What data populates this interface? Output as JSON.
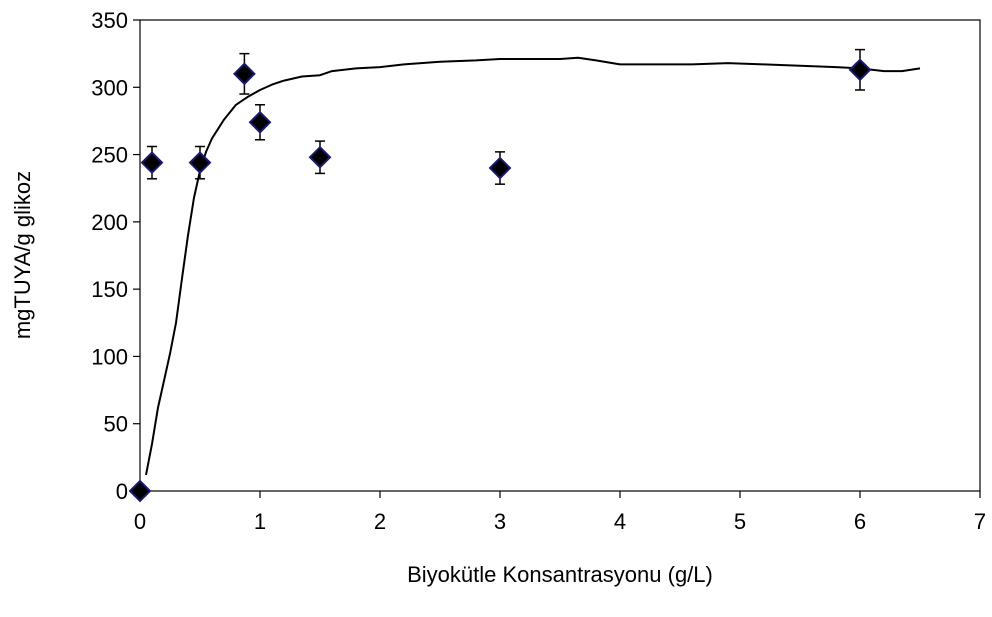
{
  "chart_data": {
    "type": "scatter",
    "title": "",
    "xlabel": "Biyokütle Konsantrasyonu (g/L)",
    "ylabel": "mgTUYA/g glikoz",
    "xlim": [
      0,
      7
    ],
    "ylim": [
      0,
      350
    ],
    "xticks": [
      0,
      1,
      2,
      3,
      4,
      5,
      6,
      7
    ],
    "yticks": [
      0,
      50,
      100,
      150,
      200,
      250,
      300,
      350
    ],
    "grid": false,
    "legend": "none",
    "marker_color": "#000000",
    "marker_edge_color": "#1a1a6e",
    "line_color": "#000000",
    "series": [
      {
        "kind": "scatter-errorbars",
        "points": [
          {
            "x": 0.0,
            "y": 0,
            "err": 0
          },
          {
            "x": 0.1,
            "y": 244,
            "err": 12
          },
          {
            "x": 0.5,
            "y": 244,
            "err": 12
          },
          {
            "x": 0.87,
            "y": 310,
            "err": 15
          },
          {
            "x": 1.0,
            "y": 274,
            "err": 13
          },
          {
            "x": 1.5,
            "y": 248,
            "err": 12
          },
          {
            "x": 3.0,
            "y": 240,
            "err": 12
          },
          {
            "x": 6.0,
            "y": 313,
            "err": 15
          }
        ]
      },
      {
        "kind": "curve",
        "points": [
          [
            0.05,
            12
          ],
          [
            0.1,
            35
          ],
          [
            0.15,
            62
          ],
          [
            0.2,
            82
          ],
          [
            0.25,
            102
          ],
          [
            0.3,
            125
          ],
          [
            0.35,
            158
          ],
          [
            0.4,
            190
          ],
          [
            0.45,
            218
          ],
          [
            0.5,
            238
          ],
          [
            0.55,
            252
          ],
          [
            0.6,
            262
          ],
          [
            0.7,
            276
          ],
          [
            0.8,
            287
          ],
          [
            0.9,
            293
          ],
          [
            1.0,
            298
          ],
          [
            1.1,
            302
          ],
          [
            1.2,
            305
          ],
          [
            1.35,
            308
          ],
          [
            1.5,
            309
          ],
          [
            1.6,
            312
          ],
          [
            1.8,
            314
          ],
          [
            2.0,
            315
          ],
          [
            2.2,
            317
          ],
          [
            2.5,
            319
          ],
          [
            2.8,
            320
          ],
          [
            3.0,
            321
          ],
          [
            3.3,
            321
          ],
          [
            3.5,
            321
          ],
          [
            3.65,
            322
          ],
          [
            3.8,
            320
          ],
          [
            4.0,
            317
          ],
          [
            4.3,
            317
          ],
          [
            4.6,
            317
          ],
          [
            4.9,
            318
          ],
          [
            5.2,
            317
          ],
          [
            5.5,
            316
          ],
          [
            5.8,
            315
          ],
          [
            6.0,
            314
          ],
          [
            6.2,
            312
          ],
          [
            6.35,
            312
          ],
          [
            6.5,
            314
          ]
        ]
      }
    ]
  }
}
